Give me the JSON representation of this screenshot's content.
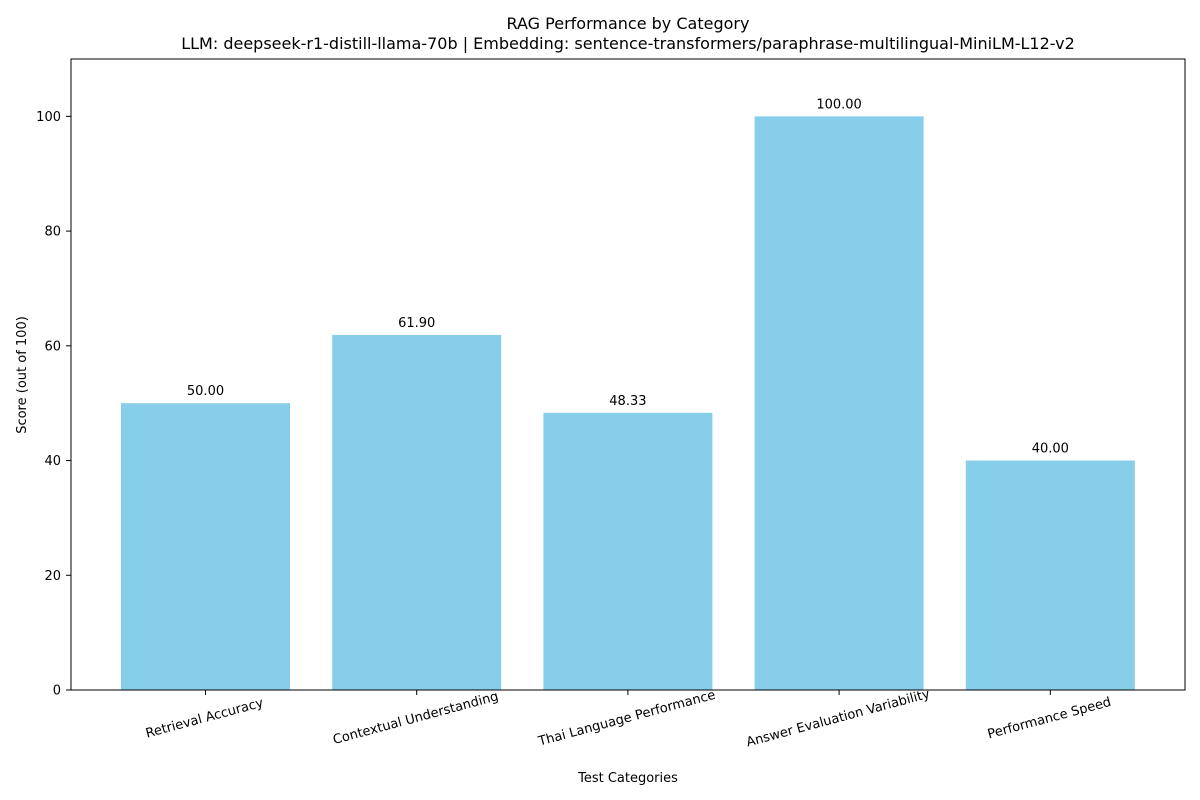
{
  "chart_data": {
    "type": "bar",
    "title": "RAG Performance by Category",
    "subtitle": "LLM: deepseek-r1-distill-llama-70b | Embedding: sentence-transformers/paraphrase-multilingual-MiniLM-L12-v2",
    "xlabel": "Test Categories",
    "ylabel": "Score (out of 100)",
    "categories": [
      "Retrieval Accuracy",
      "Contextual Understanding",
      "Thai Language Performance",
      "Answer Evaluation Variability",
      "Performance Speed"
    ],
    "values": [
      50.0,
      61.9,
      48.33,
      100.0,
      40.0
    ],
    "value_labels": [
      "50.00",
      "61.90",
      "48.33",
      "100.00",
      "40.00"
    ],
    "ylim": [
      0,
      110
    ],
    "yticks": [
      0,
      20,
      40,
      60,
      80,
      100
    ],
    "grid": false,
    "legend": "none",
    "bar_color": "#87CEEB",
    "axis_color": "#000000"
  }
}
